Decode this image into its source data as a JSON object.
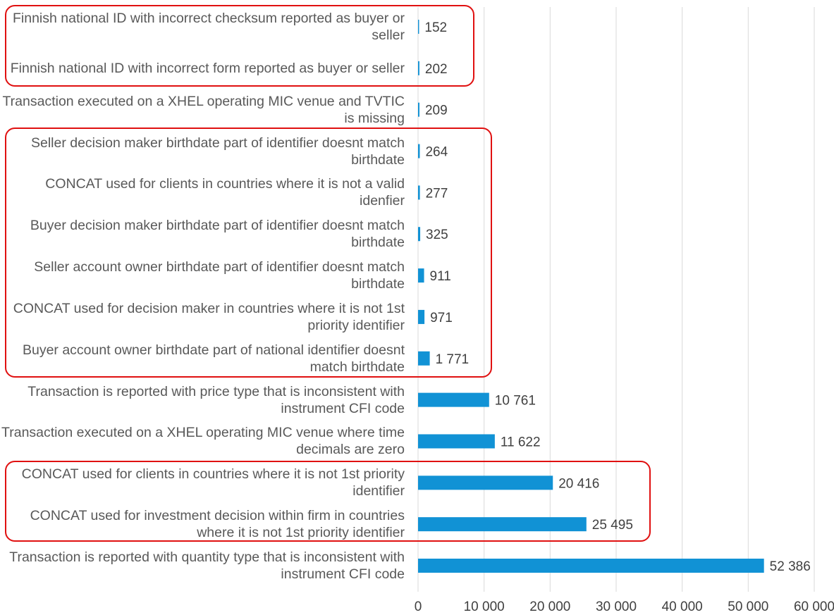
{
  "chart_data": {
    "type": "hbar",
    "categories": [
      "Finnish national ID with incorrect checksum reported as buyer or seller",
      "Finnish national ID with incorrect form reported as buyer or seller",
      "Transaction executed on a XHEL operating MIC venue and TVTIC is missing",
      "Seller decision maker birthdate part of identifier doesnt match birthdate",
      "CONCAT used for clients in countries where it is not a valid idenfier",
      "Buyer decision maker birthdate part of identifier doesnt match birthdate",
      "Seller account owner birthdate part of identifier doesnt match birthdate",
      "CONCAT used for decision maker in countries where it is not 1st priority identifier",
      "Buyer account owner birthdate part of national identifier doesnt match birthdate",
      "Transaction is reported with price type that is inconsistent with instrument CFI code",
      "Transaction executed on a XHEL operating MIC venue where time decimals are zero",
      "CONCAT used for clients in countries where it is not 1st priority identifier",
      "CONCAT used for investment decision within firm in countries where it is not 1st priority identifier",
      "Transaction is reported with quantity type that is inconsistent with instrument CFI code"
    ],
    "values": [
      152,
      202,
      209,
      264,
      277,
      325,
      911,
      971,
      1771,
      10761,
      11622,
      20416,
      25495,
      52386
    ],
    "value_labels": [
      "152",
      "202",
      "209",
      "264",
      "277",
      "325",
      "911",
      "971",
      "1 771",
      "10 761",
      "11 622",
      "20 416",
      "25 495",
      "52 386"
    ],
    "color": "#1192d5",
    "xlim": [
      0,
      60000
    ],
    "xticks": [
      0,
      {
        "value": 10000,
        "label": "10 000"
      },
      {
        "value": 20000,
        "label": "20 000"
      },
      {
        "value": 30000,
        "label": "30 000"
      },
      {
        "value": 40000,
        "label": "40 000"
      },
      {
        "value": 50000,
        "label": "50 000"
      },
      {
        "value": 60000,
        "label": "60 000"
      }
    ],
    "grid": true
  }
}
